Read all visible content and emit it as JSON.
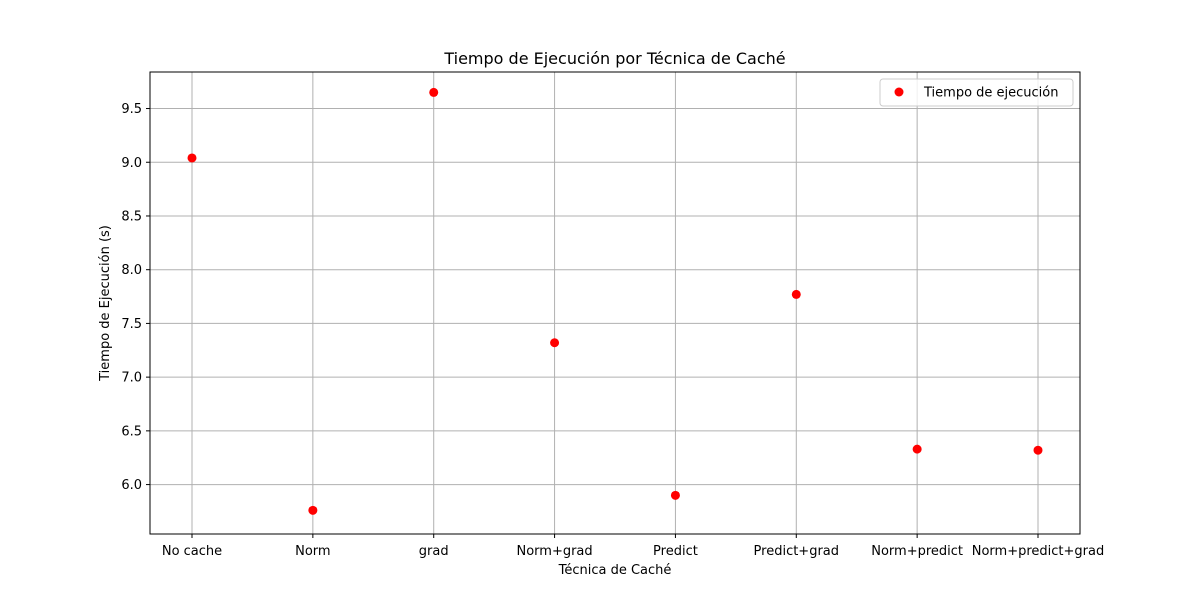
{
  "chart_data": {
    "type": "scatter",
    "title": "Tiempo de Ejecución por Técnica de Caché",
    "xlabel": "Técnica de Caché",
    "ylabel": "Tiempo de Ejecución (s)",
    "categories": [
      "No cache",
      "Norm",
      "grad",
      "Norm+grad",
      "Predict",
      "Predict+grad",
      "Norm+predict",
      "Norm+predict+grad"
    ],
    "series": [
      {
        "name": "Tiempo de ejecución",
        "color": "#ff0000",
        "values": [
          9.04,
          5.76,
          9.65,
          7.32,
          5.9,
          7.77,
          6.33,
          6.32
        ]
      }
    ],
    "ylim": [
      5.54,
      9.84
    ],
    "yticks": [
      6.0,
      6.5,
      7.0,
      7.5,
      8.0,
      8.5,
      9.0,
      9.5
    ],
    "ytick_labels": [
      "6.0",
      "6.5",
      "7.0",
      "7.5",
      "8.0",
      "8.5",
      "9.0",
      "9.5"
    ],
    "grid": true,
    "legend_position": "top-right"
  }
}
